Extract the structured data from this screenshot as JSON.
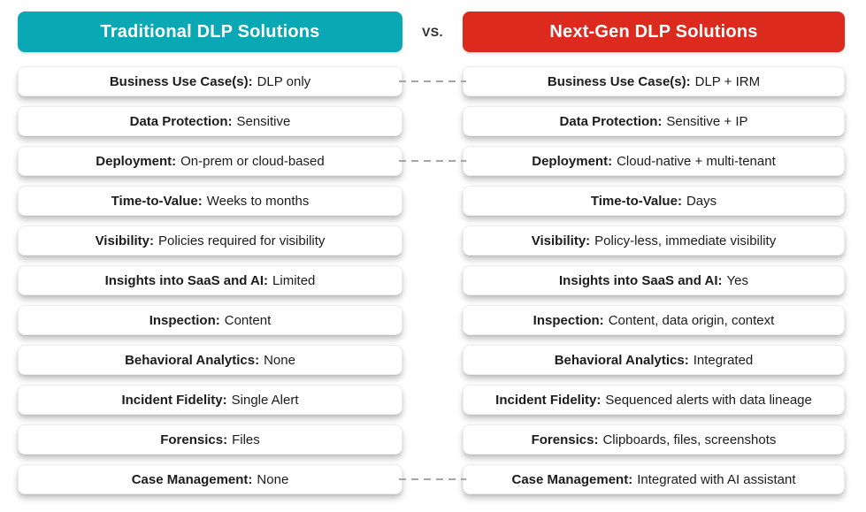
{
  "columns": {
    "traditional": {
      "title": "Traditional DLP Solutions",
      "color": "#0aa8b5"
    },
    "next_gen": {
      "title": "Next-Gen DLP Solutions",
      "color": "#dc2a1f"
    }
  },
  "vs_label": "VS.",
  "colors": {
    "connector": "#a6a6a6",
    "header_text": "#ffffff",
    "row_text": "#1c1c1c"
  },
  "rows": [
    {
      "label": "Business Use Case(s):",
      "traditional": "DLP only",
      "next_gen": "DLP + IRM",
      "connected": true
    },
    {
      "label": "Data Protection:",
      "traditional": "Sensitive",
      "next_gen": "Sensitive + IP",
      "connected": false
    },
    {
      "label": "Deployment:",
      "traditional": "On-prem or cloud-based",
      "next_gen": "Cloud-native + multi-tenant",
      "connected": true
    },
    {
      "label": "Time-to-Value:",
      "traditional": "Weeks to months",
      "next_gen": "Days",
      "connected": false
    },
    {
      "label": "Visibility:",
      "traditional": "Policies required for visibility",
      "next_gen": "Policy-less, immediate visibility",
      "connected": false
    },
    {
      "label": "Insights into SaaS and AI:",
      "traditional": "Limited",
      "next_gen": "Yes",
      "connected": false
    },
    {
      "label": "Inspection:",
      "traditional": "Content",
      "next_gen": "Content, data origin, context",
      "connected": false
    },
    {
      "label": "Behavioral Analytics:",
      "traditional": "None",
      "next_gen": "Integrated",
      "connected": false
    },
    {
      "label": "Incident Fidelity:",
      "traditional": "Single Alert",
      "next_gen": "Sequenced alerts with data lineage",
      "connected": false
    },
    {
      "label": "Forensics:",
      "traditional": "Files",
      "next_gen": "Clipboards, files, screenshots",
      "connected": false
    },
    {
      "label": "Case Management:",
      "traditional": "None",
      "next_gen": "Integrated with AI assistant",
      "connected": true
    }
  ]
}
